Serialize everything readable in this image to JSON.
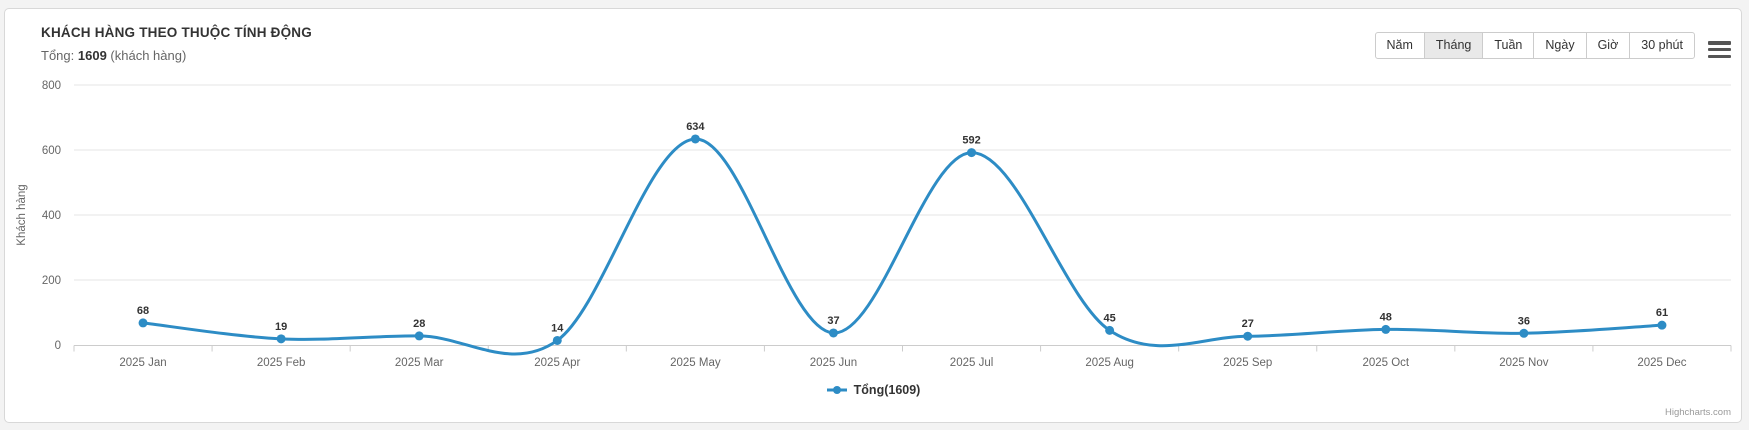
{
  "header": {
    "title": "KHÁCH HÀNG THEO THUỘC TÍNH ĐỘNG",
    "subtitle_prefix": "Tổng:",
    "total": "1609",
    "subtitle_suffix": "(khách hàng)"
  },
  "range_selector": {
    "buttons": [
      {
        "key": "nam",
        "label": "Năm",
        "active": false
      },
      {
        "key": "thang",
        "label": "Tháng",
        "active": true
      },
      {
        "key": "tuan",
        "label": "Tuần",
        "active": false
      },
      {
        "key": "ngay",
        "label": "Ngày",
        "active": false
      },
      {
        "key": "gio",
        "label": "Giờ",
        "active": false
      },
      {
        "key": "30-phut",
        "label": "30 phút",
        "active": false
      }
    ]
  },
  "chart_data": {
    "type": "line",
    "line_shape": "spline",
    "title": "KHÁCH HÀNG THEO THUỘC TÍNH ĐỘNG",
    "subtitle": "Tổng: 1609 (khách hàng)",
    "categories": [
      "2025 Jan",
      "2025 Feb",
      "2025 Mar",
      "2025 Apr",
      "2025 May",
      "2025 Jun",
      "2025 Jul",
      "2025 Aug",
      "2025 Sep",
      "2025 Oct",
      "2025 Nov",
      "2025 Dec"
    ],
    "series": [
      {
        "name": "Tổng",
        "total": 1609,
        "color": "#2d8cc5",
        "values": [
          68,
          19,
          28,
          14,
          634,
          37,
          592,
          45,
          27,
          48,
          36,
          61
        ]
      }
    ],
    "xlabel": "",
    "ylabel": "Khách hàng",
    "ylim": [
      0,
      800
    ],
    "yticks": [
      0,
      200,
      400,
      600,
      800
    ],
    "grid": true,
    "data_labels": true,
    "legend_position": "bottom",
    "legend_label": "Tổng(1609)"
  },
  "legend": {
    "label": "Tổng(1609)",
    "color": "#2d8cc5"
  },
  "credits": "Highcharts.com",
  "colors": {
    "line": "#2d8cc5",
    "grid": "#e6e6e6",
    "axis": "#cccccc",
    "axis_text": "#666666",
    "data_label": "#333333"
  }
}
